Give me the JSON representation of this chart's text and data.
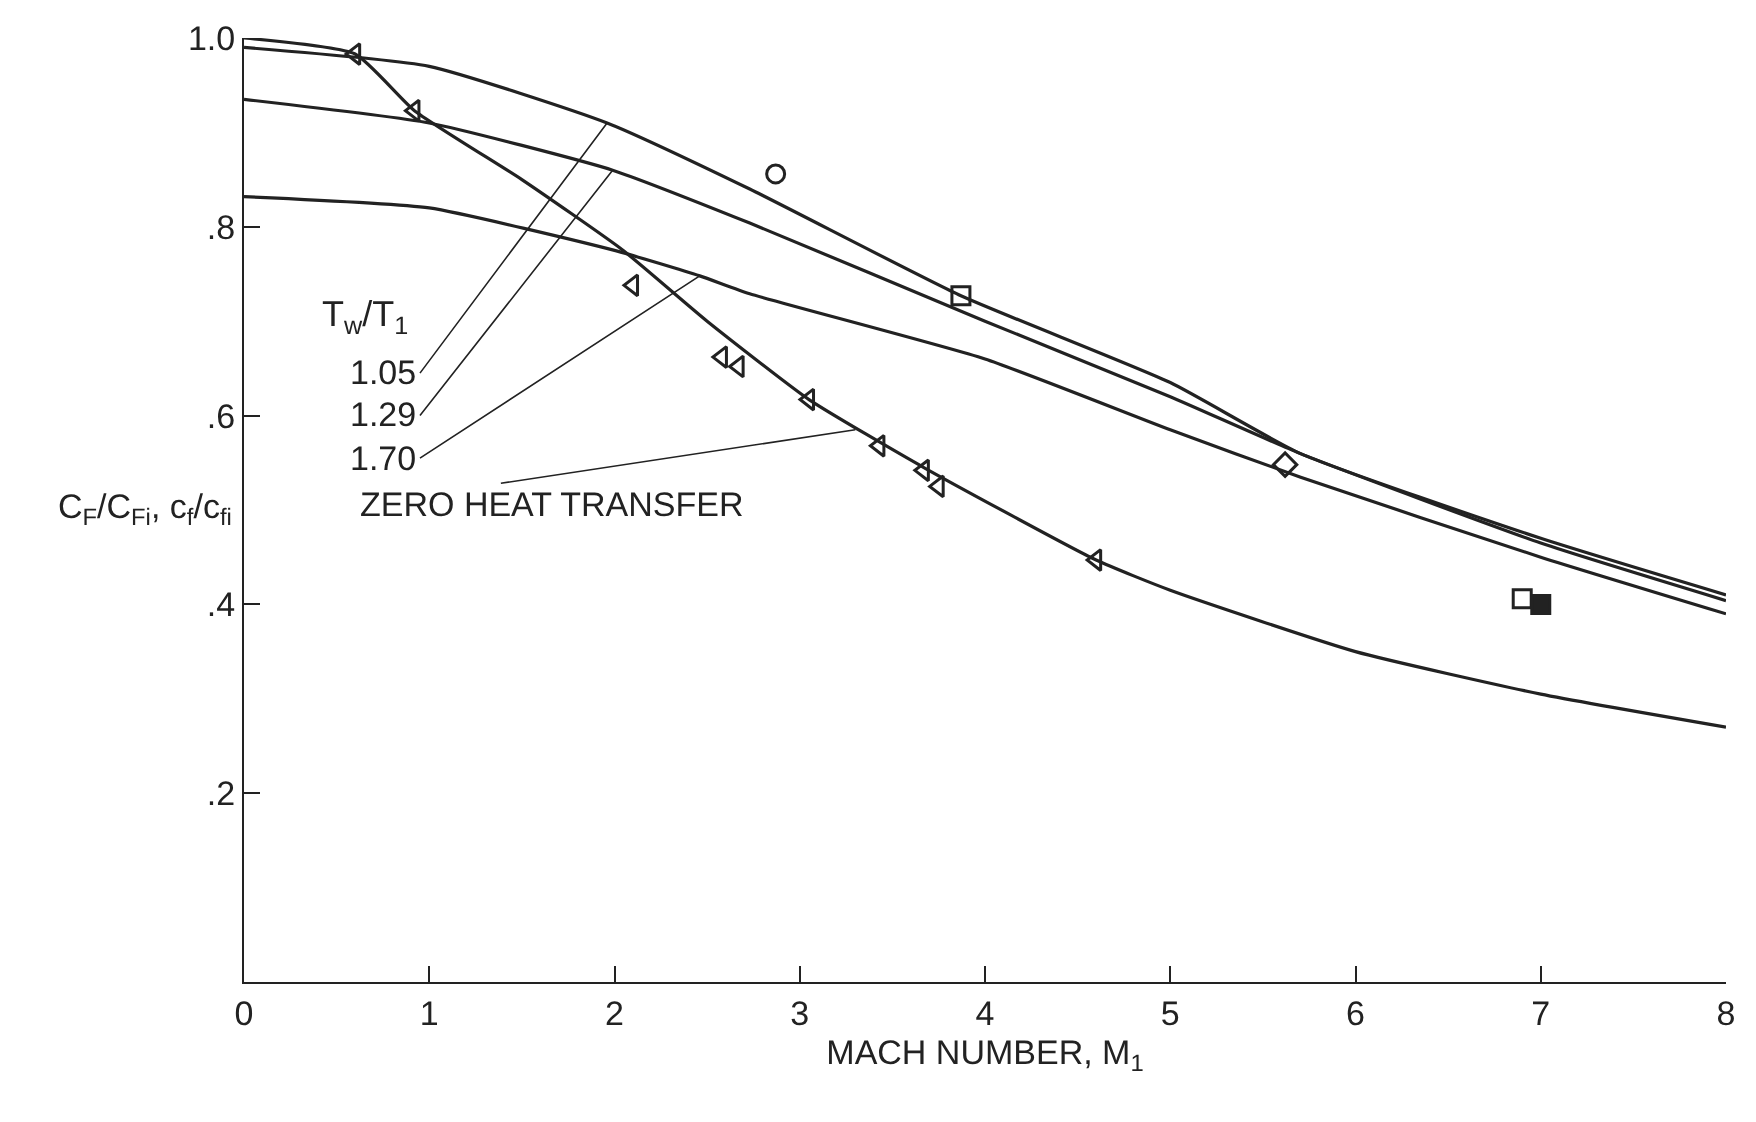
{
  "chart_data": {
    "type": "line",
    "xlabel": "MACH NUMBER, M$_{1}$",
    "ylabel": "C$_{F}$/C$_{Fi}$, c$_{f}$/c$_{fi}$",
    "legend_title": "T$_{w}$/T$_{1}$",
    "xlim": [
      0,
      8
    ],
    "ylim": [
      0,
      1.0
    ],
    "xticks": [
      0,
      1,
      2,
      3,
      4,
      5,
      6,
      7,
      8
    ],
    "yticks": [
      {
        "value": 0,
        "label": null
      },
      {
        "value": 0.2,
        "label": ".2"
      },
      {
        "value": 0.4,
        "label": ".4"
      },
      {
        "value": 0.6,
        "label": ".6"
      },
      {
        "value": 0.8,
        "label": ".8"
      },
      {
        "value": 1.0,
        "label": "1.0"
      }
    ],
    "annotations": [
      {
        "text": "1.05",
        "x": 1.96,
        "y": 0.91
      },
      {
        "text": "1.29",
        "x": 1.99,
        "y": 0.86
      },
      {
        "text": "1.70",
        "x": 2.46,
        "y": 0.748
      },
      {
        "text": "ZERO HEAT TRANSFER",
        "x": 3.3,
        "y": 0.585
      }
    ],
    "series": [
      {
        "color": "#222222",
        "x": [
          0,
          1,
          1.96,
          2.73,
          3.87,
          5,
          5.7,
          7,
          8
        ],
        "values": [
          0.99,
          0.97,
          0.91,
          0.84,
          0.727,
          0.635,
          0.56,
          0.47,
          0.41
        ]
      },
      {
        "color": "#222222",
        "x": [
          0,
          1,
          1.99,
          2.73,
          4,
          5,
          5.7,
          7,
          8
        ],
        "values": [
          0.935,
          0.91,
          0.86,
          0.804,
          0.7,
          0.62,
          0.56,
          0.465,
          0.404
        ]
      },
      {
        "color": "#222222",
        "x": [
          0,
          1,
          2,
          2.46,
          2.73,
          4,
          5,
          5.7,
          7,
          8
        ],
        "values": [
          0.832,
          0.82,
          0.775,
          0.748,
          0.729,
          0.66,
          0.585,
          0.535,
          0.45,
          0.39
        ]
      },
      {
        "color": "#222222",
        "x": [
          0,
          0.6,
          0.92,
          1.5,
          2.04,
          2.5,
          3.05,
          3.67,
          4.6,
          5,
          6,
          7,
          8
        ],
        "values": [
          1.0,
          0.983,
          0.923,
          0.85,
          0.776,
          0.7,
          0.617,
          0.545,
          0.447,
          0.415,
          0.35,
          0.305,
          0.27
        ]
      },
      {
        "type": "scatter",
        "marker": "circle",
        "color": "#222222",
        "x": [
          2.87
        ],
        "values": [
          0.856
        ]
      },
      {
        "type": "scatter",
        "marker": "square",
        "color": "#222222",
        "x": [
          3.87
        ],
        "values": [
          0.727
        ]
      },
      {
        "type": "scatter",
        "marker": "diamond",
        "color": "#222222",
        "x": [
          5.62
        ],
        "values": [
          0.548
        ]
      },
      {
        "type": "scatter",
        "marker": "triangle",
        "color": "#222222",
        "x": [
          0.6,
          0.92,
          2.1,
          2.58,
          2.67,
          3.05,
          3.43,
          3.67,
          3.75,
          4.6
        ],
        "values": [
          0.983,
          0.923,
          0.738,
          0.662,
          0.652,
          0.617,
          0.568,
          0.542,
          0.525,
          0.447
        ]
      },
      {
        "type": "scatter",
        "marker": "square",
        "color": "#222222",
        "colors": [
          "#ffffff",
          "#222222"
        ],
        "x": [
          6.9,
          7.0
        ],
        "values": [
          0.406,
          0.4
        ]
      }
    ]
  }
}
